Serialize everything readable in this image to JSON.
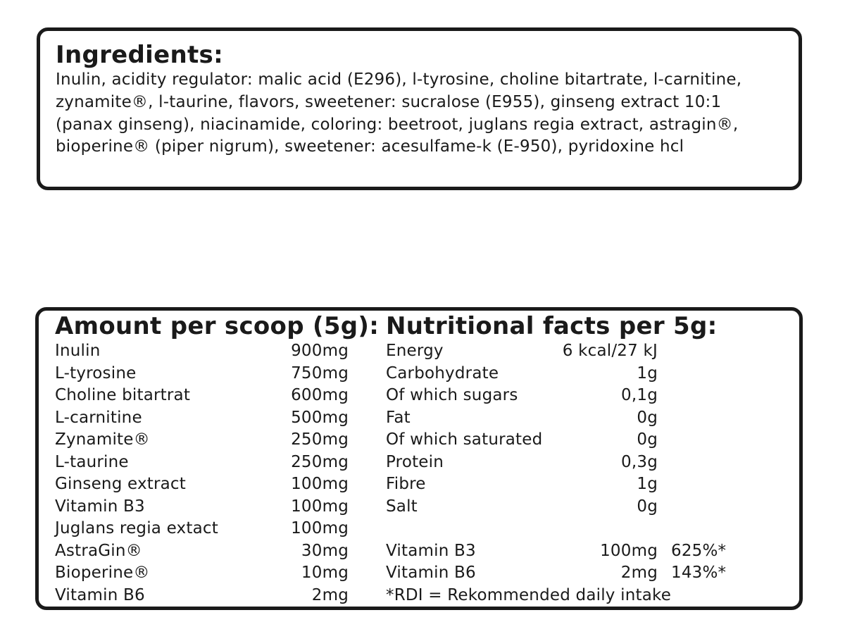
{
  "ingredients": {
    "title": "Ingredients:",
    "text": "Inulin, acidity regulator: malic acid (E296), l-tyrosine, choline bitartrate, l-carnitine, zynamite®, l-taurine, flavors, sweetener: sucralose (E955), ginseng extract 10:1 (panax ginseng), niacinamide, coloring: beetroot, juglans regia extract, astragin®, bioperine® (piper nigrum), sweetener: acesulfame-k (E-950), pyridoxine hcl"
  },
  "amount": {
    "title": "Amount per scoop (5g):",
    "rows": [
      {
        "name": "Inulin",
        "value": "900mg"
      },
      {
        "name": "L-tyrosine",
        "value": "750mg"
      },
      {
        "name": "Choline bitartrat",
        "value": "600mg"
      },
      {
        "name": "L-carnitine",
        "value": "500mg"
      },
      {
        "name": "Zynamite®",
        "value": "250mg"
      },
      {
        "name": "L-taurine",
        "value": "250mg"
      },
      {
        "name": "Ginseng extract",
        "value": "100mg"
      },
      {
        "name": "Vitamin B3",
        "value": "100mg"
      },
      {
        "name": "Juglans regia extact",
        "value": "100mg"
      },
      {
        "name": "AstraGin®",
        "value": "30mg"
      },
      {
        "name": "Bioperine®",
        "value": "10mg"
      },
      {
        "name": "Vitamin B6",
        "value": "2mg"
      }
    ]
  },
  "nutrition": {
    "title": "Nutritional facts per 5g:",
    "rows": [
      {
        "name": "Energy",
        "value": "6 kcal/27 kJ"
      },
      {
        "name": "Carbohydrate",
        "value": "1g"
      },
      {
        "name": "Of which sugars",
        "value": "0,1g"
      },
      {
        "name": "Fat",
        "value": "0g"
      },
      {
        "name": "Of which saturated",
        "value": "0g"
      },
      {
        "name": "Protein",
        "value": "0,3g"
      },
      {
        "name": "Fibre",
        "value": "1g"
      },
      {
        "name": "Salt",
        "value": "0g"
      }
    ],
    "vitamins": [
      {
        "name": "Vitamin B3",
        "value": "100mg",
        "rdi": "625%*"
      },
      {
        "name": "Vitamin B6",
        "value": "2mg",
        "rdi": "143%*"
      }
    ],
    "footnote": "*RDI = Rekommended daily intake"
  }
}
